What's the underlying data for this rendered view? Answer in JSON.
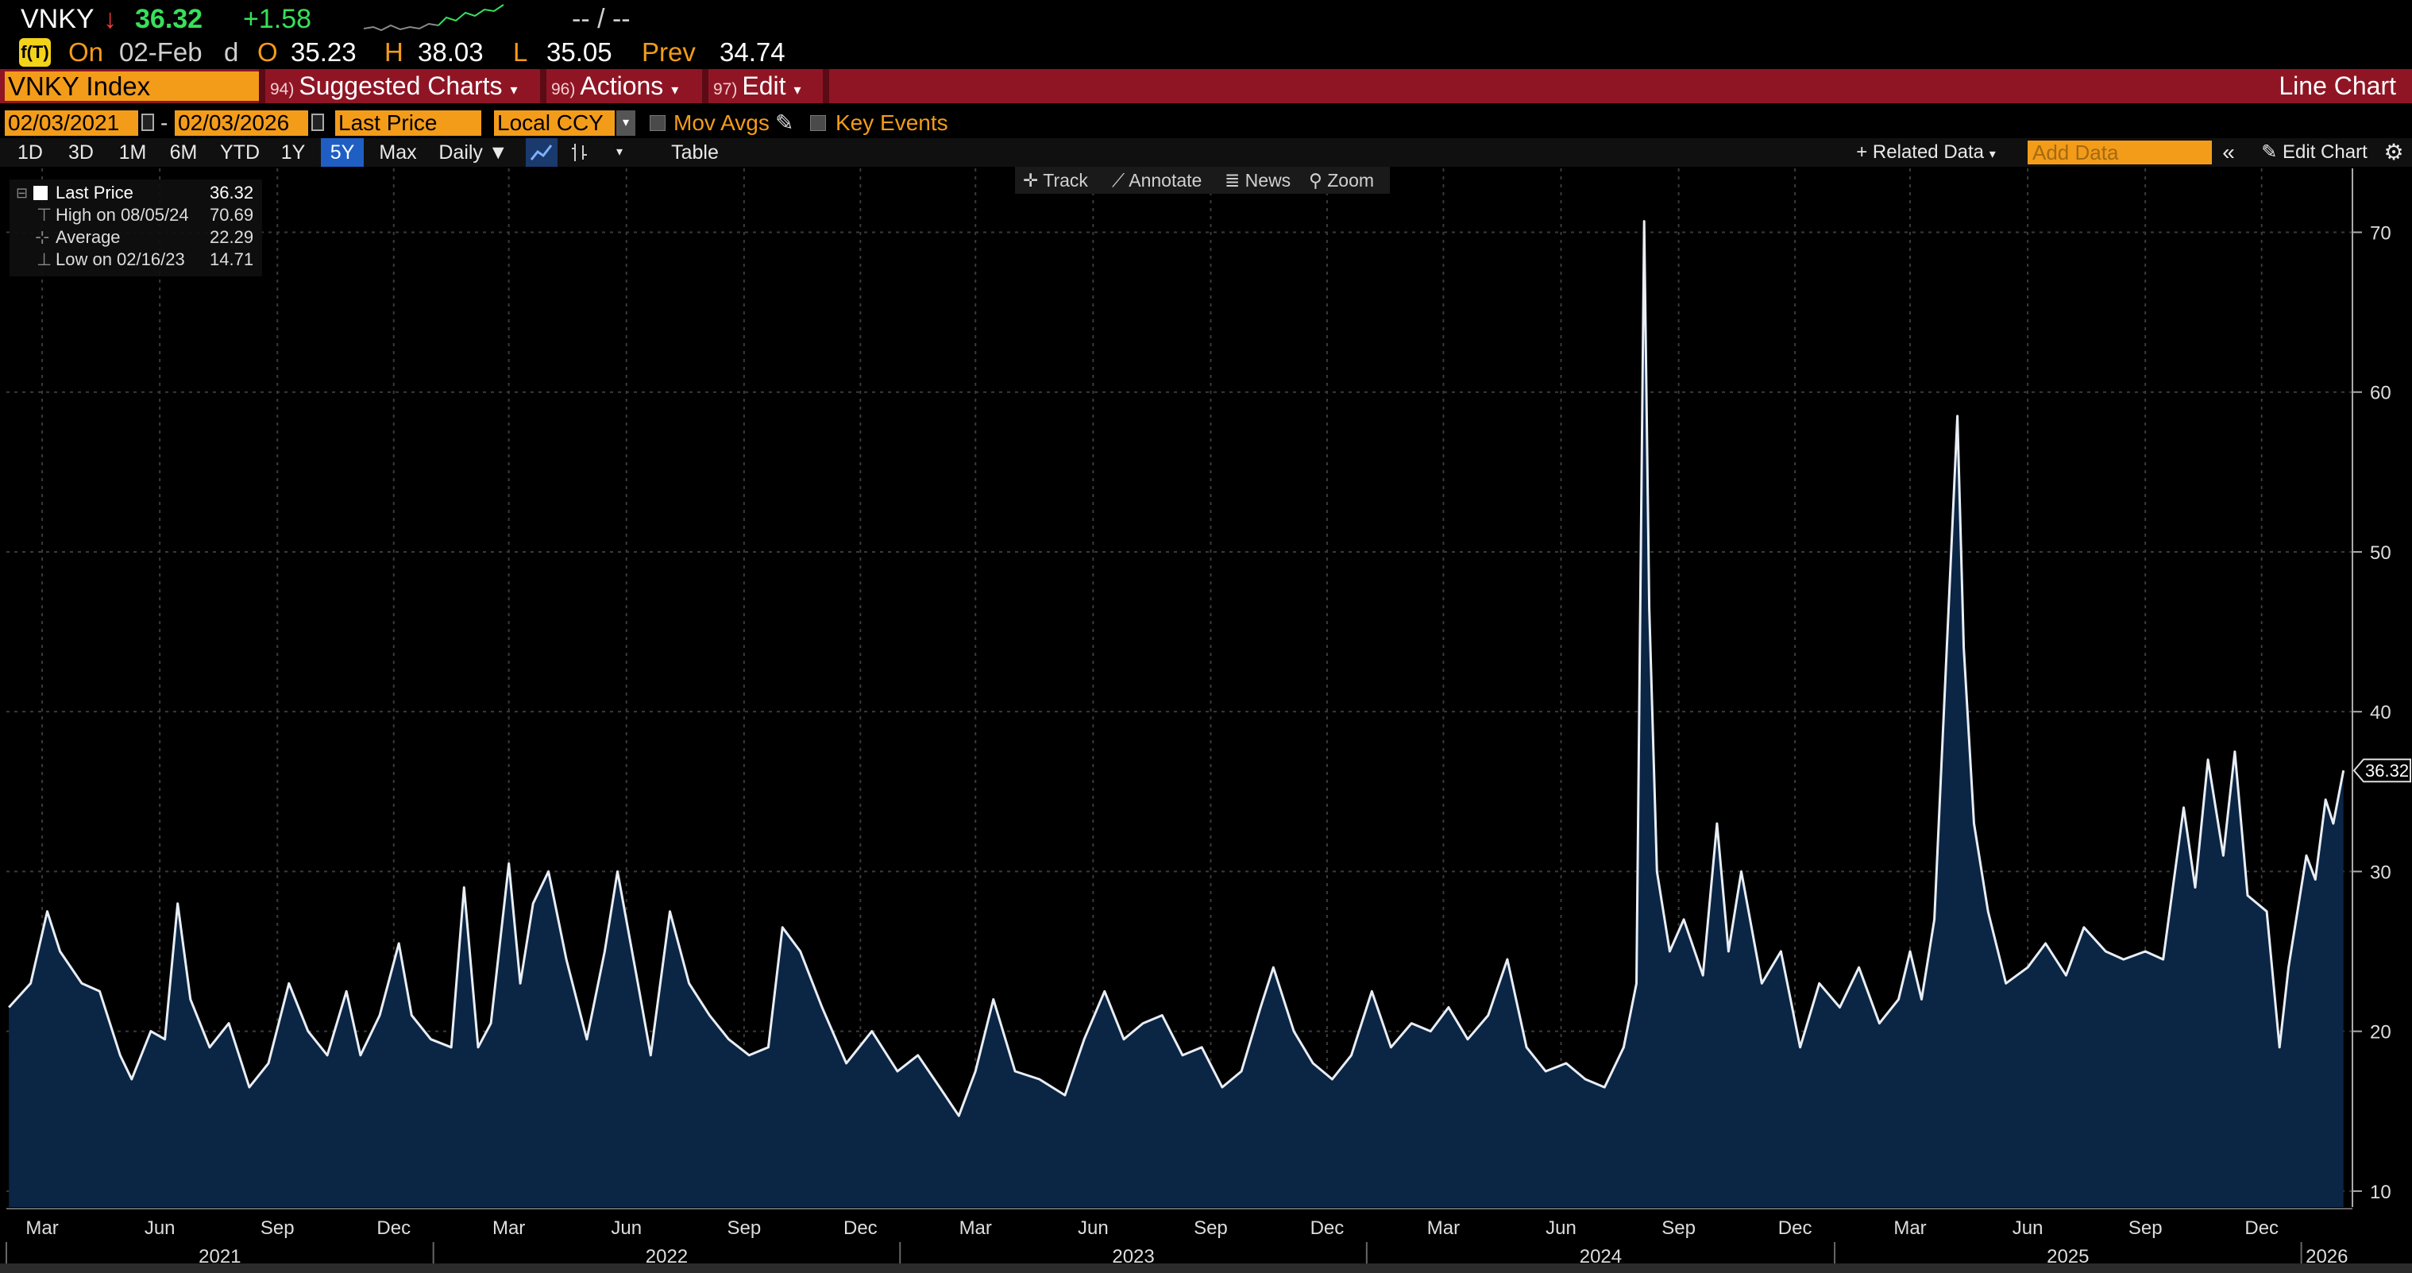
{
  "quote": {
    "ticker": "VNKY",
    "arrow": "↓",
    "last": "36.32",
    "change": "+1.58",
    "bid_ask": "-- / --"
  },
  "ohlc": {
    "on_label": "On",
    "date": "02-Feb",
    "freq": "d",
    "open_label": "O",
    "open": "35.23",
    "high_label": "H",
    "high": "38.03",
    "low_label": "L",
    "low": "35.05",
    "prev_label": "Prev",
    "prev": "34.74"
  },
  "toolbar": {
    "security": "VNKY Index",
    "menus": [
      {
        "num": "94)",
        "label": "Suggested Charts"
      },
      {
        "num": "96)",
        "label": "Actions"
      },
      {
        "num": "97)",
        "label": "Edit"
      }
    ],
    "chart_type": "Line Chart"
  },
  "settings": {
    "start_date": "02/03/2021",
    "end_date": "02/03/2026",
    "date_sep": "-",
    "field": "Last Price",
    "currency": "Local CCY",
    "mov_avgs": "Mov Avgs",
    "key_events": "Key Events"
  },
  "ranges": {
    "buttons": [
      "1D",
      "3D",
      "1M",
      "6M",
      "YTD",
      "1Y",
      "5Y",
      "Max"
    ],
    "active": "5Y",
    "periodicity": "Daily ▼",
    "table": "Table",
    "related_data": "+ Related Data",
    "add_data_placeholder": "Add Data",
    "edit_chart": "Edit Chart"
  },
  "chart_tools": {
    "track": "Track",
    "annotate": "Annotate",
    "news": "News",
    "zoom": "Zoom"
  },
  "legend": {
    "last_price_label": "Last Price",
    "last_price_value": "36.32",
    "high_label": "High on 08/05/24",
    "high_value": "70.69",
    "average_label": "Average",
    "average_value": "22.29",
    "low_label": "Low on 02/16/23",
    "low_value": "14.71"
  },
  "colors": {
    "line": "#e9eef5",
    "area": "#0b2545",
    "accent": "#f39c1a",
    "bar_red": "#8f1525",
    "up": "#37e05a",
    "down": "#ff3b3b"
  },
  "chart_data": {
    "type": "area",
    "series": [
      {
        "name": "Last Price",
        "points": [
          [
            "2021-02-03",
            21.5
          ],
          [
            "2021-02-20",
            23.0
          ],
          [
            "2021-03-05",
            27.5
          ],
          [
            "2021-03-15",
            25.0
          ],
          [
            "2021-04-01",
            23.0
          ],
          [
            "2021-04-15",
            22.5
          ],
          [
            "2021-05-01",
            18.5
          ],
          [
            "2021-05-10",
            17.0
          ],
          [
            "2021-05-25",
            20.0
          ],
          [
            "2021-06-05",
            19.5
          ],
          [
            "2021-06-15",
            28.0
          ],
          [
            "2021-06-25",
            22.0
          ],
          [
            "2021-07-10",
            19.0
          ],
          [
            "2021-07-25",
            20.5
          ],
          [
            "2021-08-10",
            16.5
          ],
          [
            "2021-08-25",
            18.0
          ],
          [
            "2021-09-10",
            23.0
          ],
          [
            "2021-09-25",
            20.0
          ],
          [
            "2021-10-10",
            18.5
          ],
          [
            "2021-10-25",
            22.5
          ],
          [
            "2021-11-05",
            18.5
          ],
          [
            "2021-11-20",
            21.0
          ],
          [
            "2021-12-05",
            25.5
          ],
          [
            "2021-12-15",
            21.0
          ],
          [
            "2021-12-30",
            19.5
          ],
          [
            "2022-01-15",
            19.0
          ],
          [
            "2022-01-25",
            29.0
          ],
          [
            "2022-02-05",
            19.0
          ],
          [
            "2022-02-15",
            20.5
          ],
          [
            "2022-03-01",
            30.5
          ],
          [
            "2022-03-10",
            23.0
          ],
          [
            "2022-03-20",
            28.0
          ],
          [
            "2022-04-01",
            30.0
          ],
          [
            "2022-04-15",
            24.5
          ],
          [
            "2022-05-01",
            19.5
          ],
          [
            "2022-05-15",
            25.0
          ],
          [
            "2022-05-25",
            30.0
          ],
          [
            "2022-06-10",
            23.0
          ],
          [
            "2022-06-20",
            18.5
          ],
          [
            "2022-07-05",
            27.5
          ],
          [
            "2022-07-20",
            23.0
          ],
          [
            "2022-08-05",
            21.0
          ],
          [
            "2022-08-20",
            19.5
          ],
          [
            "2022-09-05",
            18.5
          ],
          [
            "2022-09-20",
            19.0
          ],
          [
            "2022-10-01",
            26.5
          ],
          [
            "2022-10-15",
            25.0
          ],
          [
            "2022-11-01",
            21.5
          ],
          [
            "2022-11-20",
            18.0
          ],
          [
            "2022-12-10",
            20.0
          ],
          [
            "2022-12-30",
            17.5
          ],
          [
            "2023-01-15",
            18.5
          ],
          [
            "2023-02-01",
            16.5
          ],
          [
            "2023-02-16",
            14.71
          ],
          [
            "2023-03-01",
            17.5
          ],
          [
            "2023-03-15",
            22.0
          ],
          [
            "2023-04-01",
            17.5
          ],
          [
            "2023-04-20",
            17.0
          ],
          [
            "2023-05-10",
            16.0
          ],
          [
            "2023-05-25",
            19.5
          ],
          [
            "2023-06-10",
            22.5
          ],
          [
            "2023-06-25",
            19.5
          ],
          [
            "2023-07-10",
            20.5
          ],
          [
            "2023-07-25",
            21.0
          ],
          [
            "2023-08-10",
            18.5
          ],
          [
            "2023-08-25",
            19.0
          ],
          [
            "2023-09-10",
            16.5
          ],
          [
            "2023-09-25",
            17.5
          ],
          [
            "2023-10-10",
            21.5
          ],
          [
            "2023-10-20",
            24.0
          ],
          [
            "2023-11-05",
            20.0
          ],
          [
            "2023-11-20",
            18.0
          ],
          [
            "2023-12-05",
            17.0
          ],
          [
            "2023-12-20",
            18.5
          ],
          [
            "2024-01-05",
            22.5
          ],
          [
            "2024-01-20",
            19.0
          ],
          [
            "2024-02-05",
            20.5
          ],
          [
            "2024-02-20",
            20.0
          ],
          [
            "2024-03-05",
            21.5
          ],
          [
            "2024-03-20",
            19.5
          ],
          [
            "2024-04-05",
            21.0
          ],
          [
            "2024-04-20",
            24.5
          ],
          [
            "2024-05-05",
            19.0
          ],
          [
            "2024-05-20",
            17.5
          ],
          [
            "2024-06-05",
            18.0
          ],
          [
            "2024-06-20",
            17.0
          ],
          [
            "2024-07-05",
            16.5
          ],
          [
            "2024-07-20",
            19.0
          ],
          [
            "2024-07-30",
            23.0
          ],
          [
            "2024-08-05",
            70.69
          ],
          [
            "2024-08-09",
            46.5
          ],
          [
            "2024-08-15",
            30.0
          ],
          [
            "2024-08-25",
            25.0
          ],
          [
            "2024-09-05",
            27.0
          ],
          [
            "2024-09-20",
            23.5
          ],
          [
            "2024-10-01",
            33.0
          ],
          [
            "2024-10-10",
            25.0
          ],
          [
            "2024-10-20",
            30.0
          ],
          [
            "2024-11-05",
            23.0
          ],
          [
            "2024-11-20",
            25.0
          ],
          [
            "2024-12-05",
            19.0
          ],
          [
            "2024-12-20",
            23.0
          ],
          [
            "2025-01-05",
            21.5
          ],
          [
            "2025-01-20",
            24.0
          ],
          [
            "2025-02-05",
            20.5
          ],
          [
            "2025-02-20",
            22.0
          ],
          [
            "2025-03-01",
            25.0
          ],
          [
            "2025-03-10",
            22.0
          ],
          [
            "2025-03-20",
            27.0
          ],
          [
            "2025-04-07",
            58.5
          ],
          [
            "2025-04-12",
            44.0
          ],
          [
            "2025-04-20",
            33.0
          ],
          [
            "2025-05-01",
            27.5
          ],
          [
            "2025-05-15",
            23.0
          ],
          [
            "2025-06-01",
            24.0
          ],
          [
            "2025-06-15",
            25.5
          ],
          [
            "2025-07-01",
            23.5
          ],
          [
            "2025-07-15",
            26.5
          ],
          [
            "2025-08-01",
            25.0
          ],
          [
            "2025-08-15",
            24.5
          ],
          [
            "2025-09-01",
            25.0
          ],
          [
            "2025-09-15",
            24.5
          ],
          [
            "2025-10-01",
            34.0
          ],
          [
            "2025-10-10",
            29.0
          ],
          [
            "2025-10-20",
            37.0
          ],
          [
            "2025-11-01",
            31.0
          ],
          [
            "2025-11-10",
            37.5
          ],
          [
            "2025-11-20",
            28.5
          ],
          [
            "2025-12-05",
            27.5
          ],
          [
            "2025-12-15",
            19.0
          ],
          [
            "2025-12-22",
            24.0
          ],
          [
            "2026-01-05",
            31.0
          ],
          [
            "2026-01-12",
            29.5
          ],
          [
            "2026-01-20",
            34.5
          ],
          [
            "2026-01-26",
            33.0
          ],
          [
            "2026-02-03",
            36.32
          ]
        ]
      }
    ],
    "y_ticks": [
      10,
      20,
      30,
      40,
      50,
      60,
      70
    ],
    "ylim": [
      9,
      74
    ],
    "x_range": [
      "2021-02-01",
      "2026-02-10"
    ],
    "month_ticks": [
      {
        "date": "2021-03-01",
        "label": "Mar"
      },
      {
        "date": "2021-06-01",
        "label": "Jun"
      },
      {
        "date": "2021-09-01",
        "label": "Sep"
      },
      {
        "date": "2021-12-01",
        "label": "Dec"
      },
      {
        "date": "2022-03-01",
        "label": "Mar"
      },
      {
        "date": "2022-06-01",
        "label": "Jun"
      },
      {
        "date": "2022-09-01",
        "label": "Sep"
      },
      {
        "date": "2022-12-01",
        "label": "Dec"
      },
      {
        "date": "2023-03-01",
        "label": "Mar"
      },
      {
        "date": "2023-06-01",
        "label": "Jun"
      },
      {
        "date": "2023-09-01",
        "label": "Sep"
      },
      {
        "date": "2023-12-01",
        "label": "Dec"
      },
      {
        "date": "2024-03-01",
        "label": "Mar"
      },
      {
        "date": "2024-06-01",
        "label": "Jun"
      },
      {
        "date": "2024-09-01",
        "label": "Sep"
      },
      {
        "date": "2024-12-01",
        "label": "Dec"
      },
      {
        "date": "2025-03-01",
        "label": "Mar"
      },
      {
        "date": "2025-06-01",
        "label": "Jun"
      },
      {
        "date": "2025-09-01",
        "label": "Sep"
      },
      {
        "date": "2025-12-01",
        "label": "Dec"
      }
    ],
    "year_labels": [
      {
        "label": "2021",
        "start": "2021-01-01",
        "end": "2022-01-01"
      },
      {
        "label": "2022",
        "start": "2022-01-01",
        "end": "2023-01-01"
      },
      {
        "label": "2023",
        "start": "2023-01-01",
        "end": "2024-01-01"
      },
      {
        "label": "2024",
        "start": "2024-01-01",
        "end": "2025-01-01"
      },
      {
        "label": "2025",
        "start": "2025-01-01",
        "end": "2026-01-01"
      },
      {
        "label": "2026",
        "start": "2026-01-01",
        "end": "2026-02-10"
      }
    ],
    "last_value_label": "36.32",
    "grid": true
  }
}
